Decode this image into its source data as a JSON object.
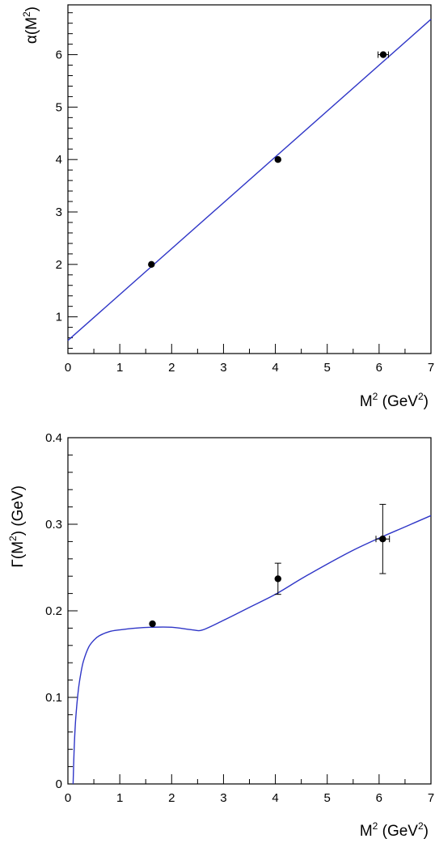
{
  "chart_data": [
    {
      "type": "scatter",
      "title": "",
      "xlabel_parts": {
        "base": "M",
        "sup": "2",
        "rest": " (GeV",
        "sup2": "2",
        "end": ")"
      },
      "ylabel_parts": {
        "base": "α(M",
        "sup": "2",
        "rest": ")"
      },
      "xlim": [
        0,
        7
      ],
      "ylim": [
        0.3,
        6.95
      ],
      "xticks": [
        0,
        1,
        2,
        3,
        4,
        5,
        6,
        7
      ],
      "yticks": [
        1,
        2,
        3,
        4,
        5,
        6
      ],
      "xtick_labels": [
        "0",
        "1",
        "2",
        "3",
        "4",
        "5",
        "6",
        "7"
      ],
      "ytick_labels": [
        "1",
        "2",
        "3",
        "4",
        "5",
        "6"
      ],
      "points": [
        {
          "x": 1.61,
          "y": 2.0,
          "xerr": 0.0,
          "yerr": 0.0
        },
        {
          "x": 4.05,
          "y": 4.0,
          "xerr": 0.0,
          "yerr": 0.0
        },
        {
          "x": 6.08,
          "y": 6.0,
          "xerr": 0.1,
          "yerr": 0.0
        }
      ],
      "fit_line": {
        "intercept": 0.55,
        "slope": 0.875
      },
      "color": "#2f36c7"
    },
    {
      "type": "scatter",
      "title": "",
      "xlabel_parts": {
        "base": "M",
        "sup": "2",
        "rest": " (GeV",
        "sup2": "2",
        "end": ")"
      },
      "ylabel_parts": {
        "base": "Γ(M",
        "sup": "2",
        "rest": ") (GeV)"
      },
      "xlim": [
        0,
        7
      ],
      "ylim": [
        0,
        0.4
      ],
      "xticks": [
        0,
        1,
        2,
        3,
        4,
        5,
        6,
        7
      ],
      "yticks": [
        0,
        0.1,
        0.2,
        0.3,
        0.4
      ],
      "xtick_labels": [
        "0",
        "1",
        "2",
        "3",
        "4",
        "5",
        "6",
        "7"
      ],
      "ytick_labels": [
        "0",
        "0.1",
        "0.2",
        "0.3",
        "0.4"
      ],
      "points": [
        {
          "x": 1.63,
          "y": 0.185,
          "xerr": 0.0,
          "yerr": 0.0
        },
        {
          "x": 4.05,
          "y": 0.237,
          "xerr": 0.0,
          "yerr": 0.018
        },
        {
          "x": 6.07,
          "y": 0.283,
          "xerr": 0.13,
          "yerr": 0.04
        }
      ],
      "curve": {
        "x": [
          0.1,
          0.12,
          0.15,
          0.2,
          0.25,
          0.3,
          0.4,
          0.5,
          0.6,
          0.8,
          1.0,
          1.3,
          1.6,
          2.0,
          2.4,
          2.6,
          3.0,
          3.5,
          4.0,
          4.5,
          5.0,
          5.5,
          6.0,
          6.5,
          7.0
        ],
        "y": [
          0.0,
          0.04,
          0.075,
          0.108,
          0.128,
          0.142,
          0.158,
          0.166,
          0.171,
          0.176,
          0.178,
          0.18,
          0.181,
          0.181,
          0.178,
          0.178,
          0.189,
          0.204,
          0.219,
          0.237,
          0.254,
          0.27,
          0.284,
          0.297,
          0.31
        ]
      },
      "color": "#2f36c7"
    }
  ]
}
